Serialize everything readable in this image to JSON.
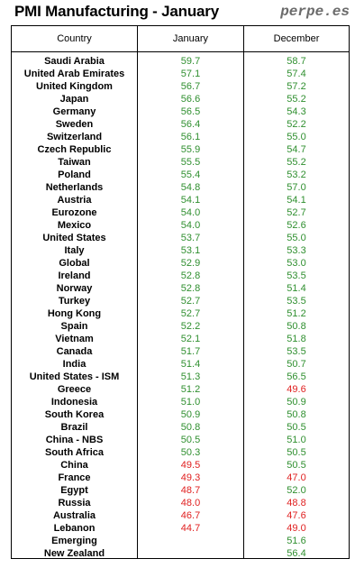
{
  "title": "PMI Manufacturing - January",
  "brand": "perpe.es",
  "colors": {
    "up": "#2f8f2f",
    "down": "#e02020"
  },
  "columns": [
    "Country",
    "January",
    "December"
  ],
  "rows": [
    {
      "country": "Saudi Arabia",
      "january": "59.7",
      "december": "58.7"
    },
    {
      "country": "United Arab Emirates",
      "january": "57.1",
      "december": "57.4"
    },
    {
      "country": "United Kingdom",
      "january": "56.7",
      "december": "57.2"
    },
    {
      "country": "Japan",
      "january": "56.6",
      "december": "55.2"
    },
    {
      "country": "Germany",
      "january": "56.5",
      "december": "54.3"
    },
    {
      "country": "Sweden",
      "january": "56.4",
      "december": "52.2"
    },
    {
      "country": "Switzerland",
      "january": "56.1",
      "december": "55.0"
    },
    {
      "country": "Czech Republic",
      "january": "55.9",
      "december": "54.7"
    },
    {
      "country": "Taiwan",
      "january": "55.5",
      "december": "55.2"
    },
    {
      "country": "Poland",
      "january": "55.4",
      "december": "53.2"
    },
    {
      "country": "Netherlands",
      "january": "54.8",
      "december": "57.0"
    },
    {
      "country": "Austria",
      "january": "54.1",
      "december": "54.1"
    },
    {
      "country": "Eurozone",
      "january": "54.0",
      "december": "52.7"
    },
    {
      "country": "Mexico",
      "january": "54.0",
      "december": "52.6"
    },
    {
      "country": "United States",
      "january": "53.7",
      "december": "55.0"
    },
    {
      "country": "Italy",
      "january": "53.1",
      "december": "53.3"
    },
    {
      "country": "Global",
      "january": "52.9",
      "december": "53.0"
    },
    {
      "country": "Ireland",
      "january": "52.8",
      "december": "53.5"
    },
    {
      "country": "Norway",
      "january": "52.8",
      "december": "51.4"
    },
    {
      "country": "Turkey",
      "january": "52.7",
      "december": "53.5"
    },
    {
      "country": "Hong Kong",
      "january": "52.7",
      "december": "51.2"
    },
    {
      "country": "Spain",
      "january": "52.2",
      "december": "50.8"
    },
    {
      "country": "Vietnam",
      "january": "52.1",
      "december": "51.8"
    },
    {
      "country": "Canada",
      "january": "51.7",
      "december": "53.5"
    },
    {
      "country": "India",
      "january": "51.4",
      "december": "50.7"
    },
    {
      "country": "United States - ISM",
      "january": "51.3",
      "december": "56.5"
    },
    {
      "country": "Greece",
      "january": "51.2",
      "december": "49.6"
    },
    {
      "country": "Indonesia",
      "january": "51.0",
      "december": "50.9"
    },
    {
      "country": "South Korea",
      "january": "50.9",
      "december": "50.8"
    },
    {
      "country": "Brazil",
      "january": "50.8",
      "december": "50.5"
    },
    {
      "country": "China - NBS",
      "january": "50.5",
      "december": "51.0"
    },
    {
      "country": "South Africa",
      "january": "50.3",
      "december": "50.5"
    },
    {
      "country": "China",
      "january": "49.5",
      "december": "50.5"
    },
    {
      "country": "France",
      "january": "49.3",
      "december": "47.0"
    },
    {
      "country": "Egypt",
      "january": "48.7",
      "december": "52.0"
    },
    {
      "country": "Russia",
      "january": "48.0",
      "december": "48.8"
    },
    {
      "country": "Australia",
      "january": "46.7",
      "december": "47.6"
    },
    {
      "country": "Lebanon",
      "january": "44.7",
      "december": "49.0"
    },
    {
      "country": "Emerging",
      "january": "",
      "december": "51.6"
    },
    {
      "country": "New Zealand",
      "january": "",
      "december": "56.4"
    }
  ]
}
